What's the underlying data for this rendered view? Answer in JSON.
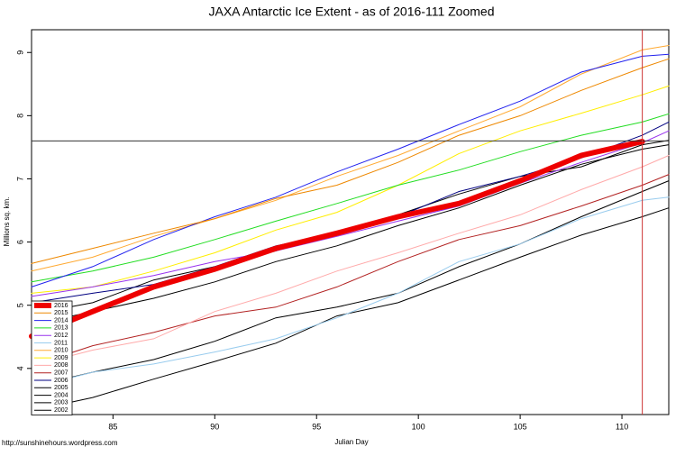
{
  "chart_data": {
    "type": "line",
    "title": "JAXA Antarctic Ice Extent - as of 2016-111 Zoomed",
    "x_label": "Julian Day",
    "y_label": "Millions sq. km.",
    "footer": "http://sunshinehours.wordpress.com",
    "xlim": [
      81,
      112.3
    ],
    "ylim": [
      3.27,
      9.36
    ],
    "xticks": [
      85,
      90,
      95,
      100,
      105,
      110
    ],
    "yticks": [
      4,
      5,
      6,
      7,
      8,
      9
    ],
    "hline": 7.6,
    "hline_color": "#333333",
    "vline": 111,
    "vline_color": "#cc3333",
    "x": [
      81,
      84,
      87,
      90,
      93,
      96,
      99,
      102,
      105,
      108,
      111,
      112.3
    ],
    "series": [
      {
        "name": "2016",
        "color": "#ee0000",
        "width": 6,
        "values": [
          4.51,
          4.9,
          5.29,
          5.57,
          5.9,
          6.14,
          6.4,
          6.61,
          6.97,
          7.37,
          7.59,
          null
        ]
      },
      {
        "name": "2015",
        "color": "#ee8800",
        "width": 1,
        "values": [
          5.66,
          5.9,
          6.14,
          6.37,
          6.69,
          6.9,
          7.26,
          7.69,
          8.0,
          8.4,
          8.76,
          8.9
        ]
      },
      {
        "name": "2014",
        "color": "#2222ee",
        "width": 1,
        "values": [
          5.29,
          5.61,
          6.04,
          6.4,
          6.71,
          7.11,
          7.47,
          7.86,
          8.23,
          8.69,
          8.94,
          8.97
        ]
      },
      {
        "name": "2013",
        "color": "#22dd22",
        "width": 1,
        "values": [
          5.37,
          5.54,
          5.76,
          6.04,
          6.33,
          6.61,
          6.9,
          7.14,
          7.43,
          7.69,
          7.9,
          8.03
        ]
      },
      {
        "name": "2012",
        "color": "#9933ee",
        "width": 1,
        "values": [
          5.14,
          5.29,
          5.47,
          5.69,
          5.86,
          6.09,
          6.33,
          6.57,
          6.93,
          7.26,
          7.57,
          7.76
        ]
      },
      {
        "name": "2011",
        "color": "#99ccee",
        "width": 1,
        "values": [
          3.69,
          3.94,
          4.07,
          4.26,
          4.47,
          4.8,
          5.19,
          5.69,
          5.97,
          6.37,
          6.66,
          6.71
        ]
      },
      {
        "name": "2010",
        "color": "#ffaa33",
        "width": 1,
        "values": [
          5.54,
          5.76,
          6.09,
          6.37,
          6.66,
          7.04,
          7.37,
          7.76,
          8.14,
          8.66,
          9.04,
          9.11
        ]
      },
      {
        "name": "2009",
        "color": "#ffee00",
        "width": 1,
        "values": [
          5.19,
          5.29,
          5.54,
          5.83,
          6.19,
          6.47,
          6.9,
          7.4,
          7.76,
          8.04,
          8.33,
          8.47
        ]
      },
      {
        "name": "2008",
        "color": "#ffaaaa",
        "width": 1,
        "values": [
          4.04,
          4.29,
          4.47,
          4.9,
          5.19,
          5.54,
          5.83,
          6.14,
          6.43,
          6.83,
          7.19,
          7.37
        ]
      },
      {
        "name": "2007",
        "color": "#b22222",
        "width": 1,
        "values": [
          4.04,
          4.36,
          4.57,
          4.83,
          4.97,
          5.29,
          5.69,
          6.04,
          6.26,
          6.57,
          6.9,
          7.07
        ]
      },
      {
        "name": "2006",
        "color": "#000080",
        "width": 1,
        "values": [
          5.04,
          5.19,
          5.33,
          5.61,
          5.94,
          6.14,
          6.4,
          6.8,
          7.04,
          7.33,
          7.69,
          7.9
        ]
      },
      {
        "name": "2005",
        "color": "#000000",
        "width": 1,
        "values": [
          4.86,
          5.04,
          5.4,
          5.61,
          5.86,
          6.14,
          6.43,
          6.76,
          7.04,
          7.19,
          7.54,
          7.61
        ]
      },
      {
        "name": "2004",
        "color": "#000000",
        "width": 1,
        "values": [
          4.69,
          4.9,
          5.11,
          5.37,
          5.69,
          5.94,
          6.26,
          6.54,
          6.9,
          7.23,
          7.47,
          7.54
        ]
      },
      {
        "name": "2003",
        "color": "#000000",
        "width": 1,
        "values": [
          3.33,
          3.54,
          3.83,
          4.11,
          4.4,
          4.83,
          5.04,
          5.4,
          5.76,
          6.11,
          6.4,
          6.54
        ]
      },
      {
        "name": "2002",
        "color": "#000000",
        "width": 1,
        "values": [
          3.71,
          3.94,
          4.14,
          4.43,
          4.8,
          4.97,
          5.19,
          5.61,
          5.97,
          6.4,
          6.8,
          6.97
        ]
      }
    ]
  }
}
